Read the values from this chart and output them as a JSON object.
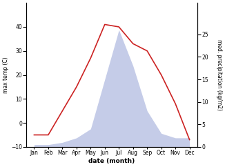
{
  "months": [
    "Jan",
    "Feb",
    "Mar",
    "Apr",
    "May",
    "Jun",
    "Jul",
    "Aug",
    "Sep",
    "Oct",
    "Nov",
    "Dec"
  ],
  "temp": [
    -5,
    -5,
    5,
    15,
    27,
    41,
    40,
    33,
    30,
    20,
    8,
    -7
  ],
  "precip": [
    0.5,
    0.5,
    1,
    2,
    4,
    15,
    26,
    18,
    8,
    3,
    2,
    2
  ],
  "temp_color": "#cc2222",
  "precip_fill_color": "#c5cce8",
  "xlabel": "date (month)",
  "ylabel_left": "max temp (C)",
  "ylabel_right": "med. precipitation (kg/m2)",
  "ylim_left": [
    -10,
    50
  ],
  "ylim_right": [
    0,
    32
  ],
  "yticks_left": [
    -10,
    0,
    10,
    20,
    30,
    40
  ],
  "yticks_right": [
    0,
    5,
    10,
    15,
    20,
    25
  ],
  "figsize": [
    3.26,
    2.42
  ],
  "dpi": 100
}
